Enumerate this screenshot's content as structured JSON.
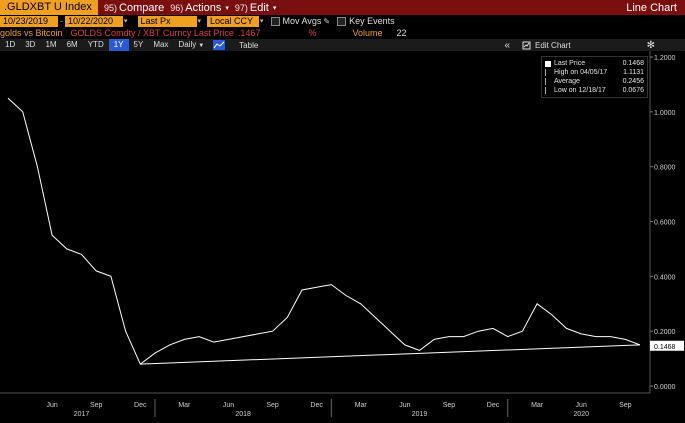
{
  "topbar": {
    "ticker": ".GLDXBT U Index",
    "buttons": [
      {
        "num": "95)",
        "label": "Compare"
      },
      {
        "num": "96)",
        "label": "Actions"
      },
      {
        "num": "97)",
        "label": "Edit"
      }
    ],
    "title": "Line Chart"
  },
  "controls": {
    "start_date": "10/23/2019",
    "end_date": "10/22/2020",
    "field": "Last Px",
    "currency": "Local CCY",
    "mov_avgs": "Mov Avgs",
    "key_events": "Key Events"
  },
  "security": {
    "name": "golds vs Bitcoin",
    "desc": "GOLDS Comdty / XBT Curncy Last Price",
    "value": ".1467",
    "pct": "%",
    "volume_label": "Volume",
    "volume": "22"
  },
  "periods": [
    "1D",
    "3D",
    "1M",
    "6M",
    "YTD",
    "1Y",
    "5Y",
    "Max"
  ],
  "active_period": "1Y",
  "frequency": "Daily",
  "table_label": "Table",
  "collapse_label": "«",
  "edit_chart_label": "Edit Chart",
  "legend": {
    "rows": [
      {
        "label": "Last Price",
        "value": "0.1468"
      },
      {
        "label": "High on 04/05/17",
        "value": "1.1131"
      },
      {
        "label": "Average",
        "value": "0.2456"
      },
      {
        "label": "Low on 12/18/17",
        "value": "0.0676"
      }
    ]
  },
  "colors": {
    "bar_red": "#7a0f0f",
    "amber": "#f0a020",
    "line": "#ffffff",
    "active_blue": "#2a5bd7"
  },
  "chart_data": {
    "type": "line",
    "series": [
      {
        "name": "Last Price"
      }
    ],
    "y_ticks": [
      "1.2000",
      "1.0000",
      "0.8000",
      "0.6000",
      "0.4000",
      "0.2000",
      "0.0000"
    ],
    "ylim": [
      0,
      1.2
    ],
    "last_value_label": "0.1468",
    "x_month_labels": [
      "Jun",
      "Sep",
      "Dec",
      "Mar",
      "Jun",
      "Sep",
      "Dec",
      "Mar",
      "Jun",
      "Sep",
      "Dec",
      "Mar",
      "Jun",
      "Sep"
    ],
    "x_year_labels": [
      "2017",
      "2018",
      "2019",
      "2020"
    ],
    "x": [
      "2017-03",
      "2017-04",
      "2017-05",
      "2017-06",
      "2017-07",
      "2017-08",
      "2017-09",
      "2017-10",
      "2017-11",
      "2017-12",
      "2018-01",
      "2018-02",
      "2018-03",
      "2018-04",
      "2018-05",
      "2018-06",
      "2018-07",
      "2018-08",
      "2018-09",
      "2018-10",
      "2018-11",
      "2018-12",
      "2019-01",
      "2019-02",
      "2019-03",
      "2019-04",
      "2019-05",
      "2019-06",
      "2019-07",
      "2019-08",
      "2019-09",
      "2019-10",
      "2019-11",
      "2019-12",
      "2020-01",
      "2020-02",
      "2020-03",
      "2020-04",
      "2020-05",
      "2020-06",
      "2020-07",
      "2020-08",
      "2020-09",
      "2020-10"
    ],
    "y": [
      1.05,
      1.0,
      0.8,
      0.55,
      0.5,
      0.48,
      0.42,
      0.4,
      0.2,
      0.08,
      0.12,
      0.15,
      0.17,
      0.18,
      0.16,
      0.17,
      0.18,
      0.19,
      0.2,
      0.25,
      0.35,
      0.36,
      0.37,
      0.33,
      0.3,
      0.25,
      0.2,
      0.15,
      0.13,
      0.17,
      0.18,
      0.18,
      0.2,
      0.21,
      0.18,
      0.2,
      0.3,
      0.26,
      0.21,
      0.19,
      0.18,
      0.18,
      0.17,
      0.15
    ],
    "trendline": {
      "start": [
        "2017-12",
        0.08
      ],
      "end": [
        "2020-10",
        0.15
      ]
    }
  }
}
